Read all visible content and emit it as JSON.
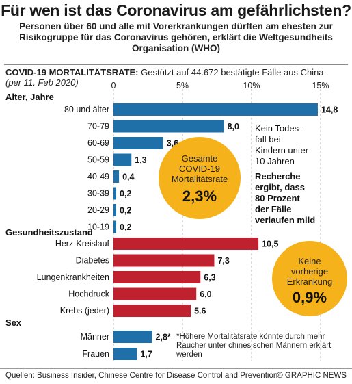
{
  "title": "Für wen ist das Coronavirus am gefährlichsten?",
  "subtitle": "Personen über 60 und alle mit Vorerkrankungen dürften am ehesten zur Risikogruppe für das Coronavirus gehören, erklärt die Weltgesundheits Organisation (WHO)",
  "source_line": {
    "label": "COVID-19 MORTALITÄTSRATE:",
    "text": "Gestützt auf 44.672 bestätigte Fälle aus China",
    "italic": "(per 11. Feb 2020)"
  },
  "colors": {
    "age": "#1f6fa8",
    "condition": "#c0212e",
    "sex": "#1f6fa8",
    "highlight": "#f5b21a"
  },
  "chart_data": {
    "type": "bar",
    "orientation": "horizontal",
    "unit": "%",
    "xlim": [
      0,
      15
    ],
    "ticks": [
      "0",
      "5%",
      "10%",
      "15%"
    ],
    "tick_values": [
      0,
      5,
      10,
      15
    ],
    "groups": [
      {
        "name": "Alter, Jahre",
        "color": "age",
        "categories": [
          "80 und älter",
          "70-79",
          "60-69",
          "50-59",
          "40-49",
          "30-39",
          "20-29",
          "10-19"
        ],
        "values": [
          14.8,
          8.0,
          3.6,
          1.3,
          0.4,
          0.2,
          0.2,
          0.2
        ],
        "labels": [
          "14,8",
          "8,0",
          "3,6",
          "1,3",
          "0,4",
          "0,2",
          "0,2",
          "0,2"
        ]
      },
      {
        "name": "Gesundheitszustand",
        "color": "condition",
        "categories": [
          "Herz-Kreislauf",
          "Diabetes",
          "Lungenkrankheiten",
          "Hochdruck",
          "Krebs (jeder)"
        ],
        "values": [
          10.5,
          7.3,
          6.3,
          6.0,
          5.6
        ],
        "labels": [
          "10,5",
          "7,3",
          "6,3",
          "6,0",
          "5.6"
        ]
      },
      {
        "name": "Sex",
        "color": "sex",
        "categories": [
          "Männer",
          "Frauen"
        ],
        "values": [
          2.8,
          1.7
        ],
        "labels": [
          "2,8*",
          "1,7"
        ]
      }
    ]
  },
  "notes": {
    "children": [
      "Kein Todes-",
      "fall bei",
      "Kindern unter",
      "10 Jahren"
    ],
    "research": [
      "Recherche",
      "ergibt, dass",
      "80 Prozent",
      "der Fälle",
      "verlaufen mild"
    ],
    "footnote": "*Höhere Mortalitätsrate könnte durch mehr Raucher unter chinesischen Männern erklärt werden"
  },
  "circles": {
    "overall": {
      "lines": [
        "Gesamte",
        "COVID-19",
        "Mortalitätsrate"
      ],
      "value": "2,3%"
    },
    "no_condition": {
      "lines": [
        "Keine",
        "vorherige",
        "Erkrankung"
      ],
      "value": "0,9%"
    }
  },
  "footer": {
    "sources": "Quellen: Business Insider, Chinese Centre for Disease Control and Prevention",
    "brand": "© GRAPHIC NEWS"
  }
}
